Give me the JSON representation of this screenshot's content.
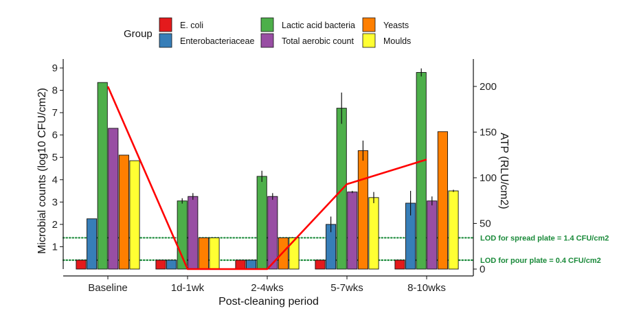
{
  "chart_data": {
    "type": "bar",
    "xlabel": "Post-cleaning period",
    "ylabel": "Microbial counts (log10 CFU/cm2)",
    "y2label": "ATP (RLU/cm2)",
    "ylim": [
      0,
      9.4
    ],
    "y_ticks": [
      1,
      2,
      3,
      4,
      5,
      6,
      7,
      8,
      9
    ],
    "y2lim": [
      0,
      230
    ],
    "y2_ticks": [
      0,
      50,
      100,
      150,
      200
    ],
    "legend_title": "Group",
    "legend_position": "top",
    "grid": false,
    "categories": [
      "Baseline",
      "1d-1wk",
      "2-4wks",
      "5-7wks",
      "8-10wks"
    ],
    "series": [
      {
        "name": "E. coli",
        "color": "#e41a1c",
        "values": [
          0.4,
          0.4,
          0.4,
          0.4,
          0.4
        ],
        "errors": [
          0,
          0,
          0,
          0,
          0
        ]
      },
      {
        "name": "Enterobacteriaceae",
        "color": "#377eb8",
        "values": [
          2.25,
          0.4,
          0.4,
          2.0,
          2.95
        ],
        "errors": [
          0,
          0,
          0,
          0.35,
          0.55
        ]
      },
      {
        "name": "Lactic acid bacteria",
        "color": "#4daf4a",
        "values": [
          8.35,
          3.05,
          4.15,
          7.2,
          8.8
        ],
        "errors": [
          0,
          0.12,
          0.25,
          0.7,
          0.18
        ]
      },
      {
        "name": "Total aerobic count",
        "color": "#984ea3",
        "values": [
          6.3,
          3.25,
          3.25,
          3.45,
          3.05
        ],
        "errors": [
          0,
          0.15,
          0.15,
          0.05,
          0.2
        ]
      },
      {
        "name": "Yeasts",
        "color": "#ff7f00",
        "values": [
          5.1,
          1.4,
          1.4,
          5.3,
          6.15
        ],
        "errors": [
          0,
          0,
          0,
          0.45,
          0
        ]
      },
      {
        "name": "Moulds",
        "color": "#ffff33",
        "values": [
          4.85,
          1.4,
          1.4,
          3.2,
          3.5
        ],
        "errors": [
          0,
          0,
          0,
          0.25,
          0.05
        ]
      }
    ],
    "atp_line": {
      "color": "#ff0000",
      "values": [
        200,
        0,
        0,
        93,
        120
      ]
    },
    "lod_lines": [
      {
        "label": "LOD  for spread plate = 1.4 CFU/cm2",
        "y": 1.4,
        "color": "#1a8a3a"
      },
      {
        "label": "LOD for pour plate = 0.4 CFU/cm2",
        "y": 0.4,
        "color": "#1a8a3a"
      }
    ]
  }
}
